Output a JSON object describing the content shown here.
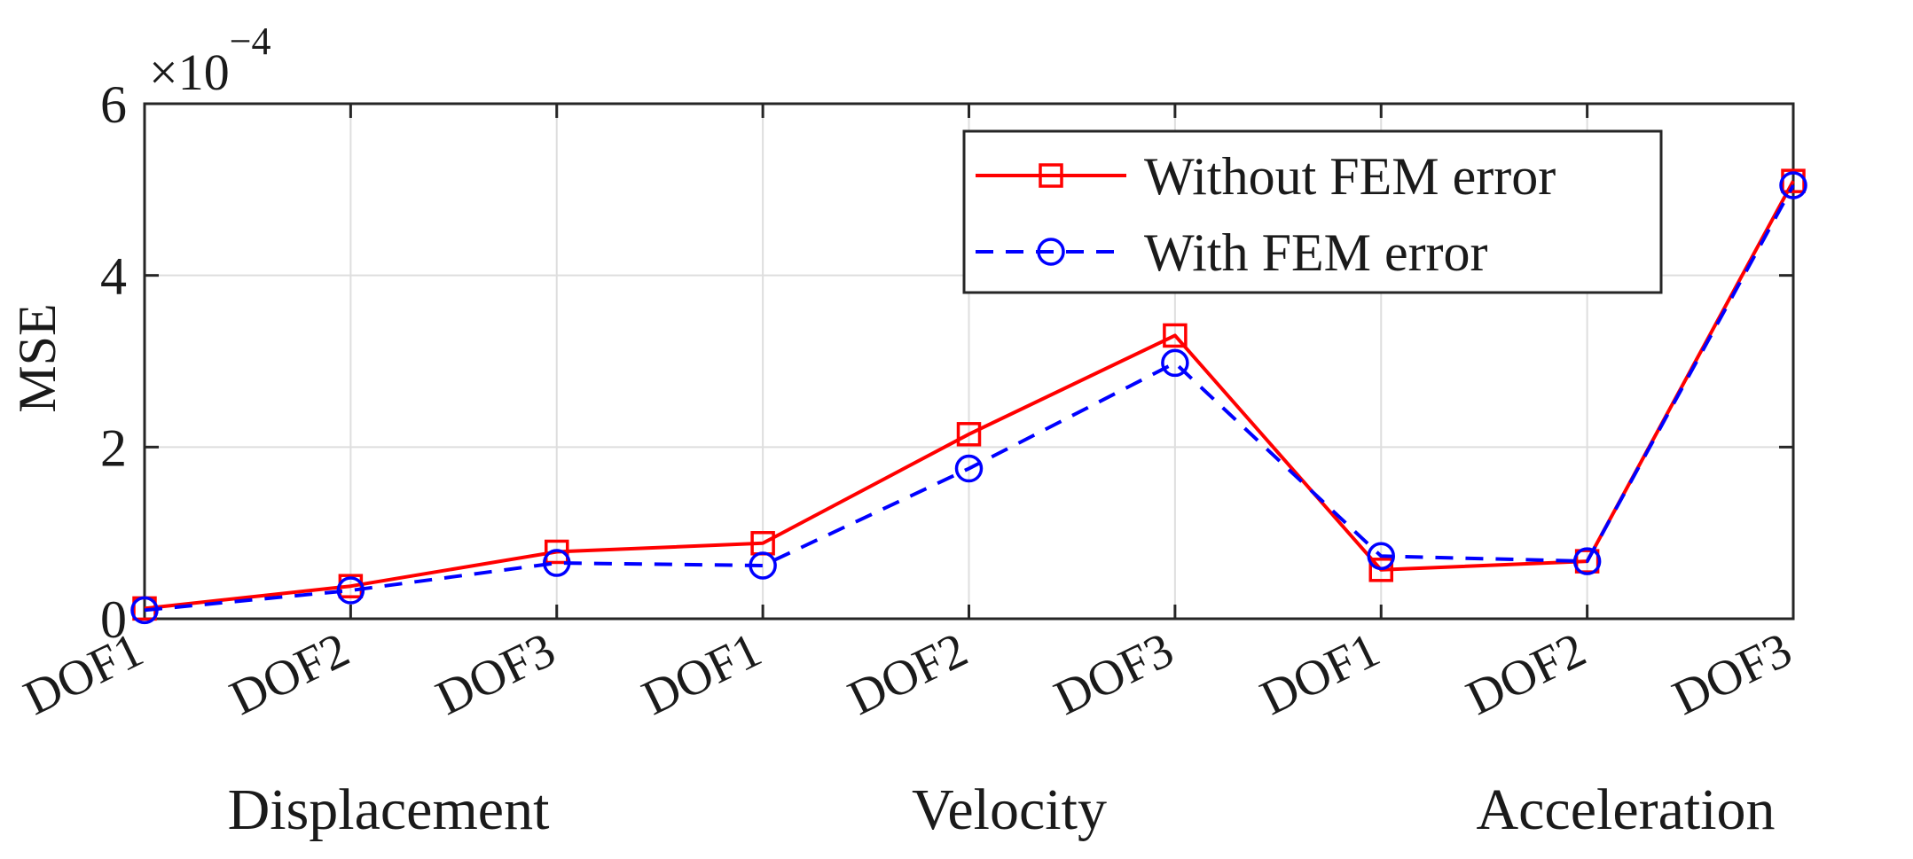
{
  "chart_data": {
    "type": "line",
    "ylabel": "MSE",
    "y_exponent_label": {
      "base": "×10",
      "exponent": "−4"
    },
    "ylim": [
      0,
      6
    ],
    "yticks": [
      0,
      2,
      4,
      6
    ],
    "y_tick_labels": [
      "0",
      "2",
      "4",
      "6"
    ],
    "grid": true,
    "categories": [
      "DOF1",
      "DOF2",
      "DOF3",
      "DOF1",
      "DOF2",
      "DOF3",
      "DOF1",
      "DOF2",
      "DOF3"
    ],
    "groups": [
      {
        "label": "Displacement",
        "from": 0,
        "to": 2
      },
      {
        "label": "Velocity",
        "from": 3,
        "to": 5
      },
      {
        "label": "Acceleration",
        "from": 6,
        "to": 8
      }
    ],
    "legend_position": "top-right",
    "series": [
      {
        "name": "Without FEM error",
        "color": "#ff0000",
        "line_style": "solid",
        "marker": "square",
        "values": [
          0.12,
          0.38,
          0.78,
          0.88,
          2.15,
          3.3,
          0.57,
          0.67,
          5.1
        ]
      },
      {
        "name": "With FEM error",
        "color": "#0000ff",
        "line_style": "dashed",
        "marker": "circle",
        "values": [
          0.1,
          0.33,
          0.65,
          0.62,
          1.75,
          2.98,
          0.73,
          0.67,
          5.05
        ]
      }
    ]
  }
}
